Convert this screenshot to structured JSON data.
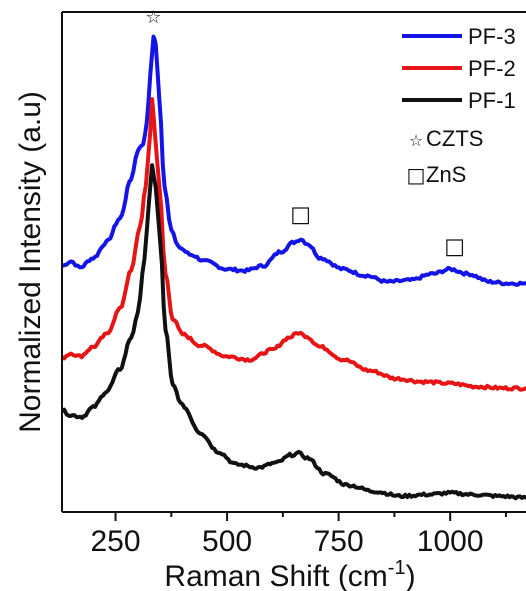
{
  "chart_data": {
    "type": "line",
    "xlabel": "Raman Shift (cm",
    "xlabel_sup": "-1",
    "xlabel_close": ")",
    "ylabel": "Normalized Intensity (a.u)",
    "xlim": [
      130,
      1170
    ],
    "ylim": [
      0,
      3.15
    ],
    "xticks": [
      250,
      500,
      750,
      1000
    ],
    "yticks_shown": false,
    "grid": false,
    "legend_placement": "top-right",
    "series": [
      {
        "name": "PF-3",
        "color": "#1414e6",
        "points": [
          [
            130,
            1.55
          ],
          [
            150,
            1.58
          ],
          [
            170,
            1.54
          ],
          [
            200,
            1.6
          ],
          [
            230,
            1.7
          ],
          [
            260,
            1.85
          ],
          [
            285,
            2.1
          ],
          [
            300,
            2.28
          ],
          [
            312,
            2.32
          ],
          [
            320,
            2.45
          ],
          [
            328,
            2.75
          ],
          [
            335,
            3.0
          ],
          [
            340,
            2.95
          ],
          [
            348,
            2.6
          ],
          [
            360,
            2.05
          ],
          [
            375,
            1.78
          ],
          [
            390,
            1.67
          ],
          [
            420,
            1.62
          ],
          [
            450,
            1.58
          ],
          [
            500,
            1.53
          ],
          [
            540,
            1.52
          ],
          [
            580,
            1.55
          ],
          [
            620,
            1.64
          ],
          [
            650,
            1.7
          ],
          [
            665,
            1.72
          ],
          [
            680,
            1.69
          ],
          [
            710,
            1.6
          ],
          [
            760,
            1.53
          ],
          [
            810,
            1.49
          ],
          [
            860,
            1.45
          ],
          [
            910,
            1.46
          ],
          [
            960,
            1.5
          ],
          [
            1000,
            1.53
          ],
          [
            1040,
            1.5
          ],
          [
            1090,
            1.45
          ],
          [
            1130,
            1.44
          ],
          [
            1170,
            1.44
          ]
        ]
      },
      {
        "name": "PF-2",
        "color": "#e61414",
        "points": [
          [
            130,
            0.97
          ],
          [
            150,
            1.0
          ],
          [
            170,
            0.98
          ],
          [
            200,
            1.04
          ],
          [
            230,
            1.12
          ],
          [
            260,
            1.28
          ],
          [
            285,
            1.52
          ],
          [
            305,
            1.8
          ],
          [
            318,
            2.05
          ],
          [
            328,
            2.4
          ],
          [
            332,
            2.6
          ],
          [
            338,
            2.4
          ],
          [
            348,
            2.05
          ],
          [
            362,
            1.5
          ],
          [
            378,
            1.22
          ],
          [
            400,
            1.12
          ],
          [
            440,
            1.05
          ],
          [
            500,
            0.98
          ],
          [
            550,
            0.96
          ],
          [
            600,
            1.02
          ],
          [
            640,
            1.1
          ],
          [
            660,
            1.13
          ],
          [
            675,
            1.11
          ],
          [
            710,
            1.04
          ],
          [
            760,
            0.96
          ],
          [
            820,
            0.89
          ],
          [
            880,
            0.84
          ],
          [
            940,
            0.82
          ],
          [
            1000,
            0.81
          ],
          [
            1060,
            0.79
          ],
          [
            1120,
            0.78
          ],
          [
            1170,
            0.78
          ]
        ]
      },
      {
        "name": "PF-1",
        "color": "#111111",
        "points": [
          [
            130,
            0.64
          ],
          [
            150,
            0.61
          ],
          [
            175,
            0.6
          ],
          [
            200,
            0.66
          ],
          [
            230,
            0.76
          ],
          [
            260,
            0.9
          ],
          [
            285,
            1.1
          ],
          [
            300,
            1.25
          ],
          [
            315,
            1.6
          ],
          [
            325,
            1.95
          ],
          [
            332,
            2.18
          ],
          [
            340,
            2.05
          ],
          [
            350,
            1.7
          ],
          [
            362,
            1.15
          ],
          [
            378,
            0.8
          ],
          [
            400,
            0.67
          ],
          [
            440,
            0.5
          ],
          [
            480,
            0.38
          ],
          [
            520,
            0.3
          ],
          [
            570,
            0.28
          ],
          [
            610,
            0.31
          ],
          [
            645,
            0.36
          ],
          [
            660,
            0.37
          ],
          [
            680,
            0.34
          ],
          [
            720,
            0.24
          ],
          [
            770,
            0.17
          ],
          [
            830,
            0.13
          ],
          [
            890,
            0.1
          ],
          [
            950,
            0.11
          ],
          [
            1000,
            0.12
          ],
          [
            1050,
            0.11
          ],
          [
            1110,
            0.1
          ],
          [
            1170,
            0.09
          ]
        ]
      }
    ],
    "annotations": [
      {
        "symbol": "☆",
        "x": 335,
        "y": 3.08
      },
      {
        "symbol": "□",
        "x": 665,
        "y": 1.83
      },
      {
        "symbol": "□",
        "x": 1010,
        "y": 1.63
      }
    ],
    "marker_legend": [
      {
        "symbol": "☆",
        "label": "CZTS"
      },
      {
        "symbol": "□",
        "label": "ZnS"
      }
    ]
  }
}
